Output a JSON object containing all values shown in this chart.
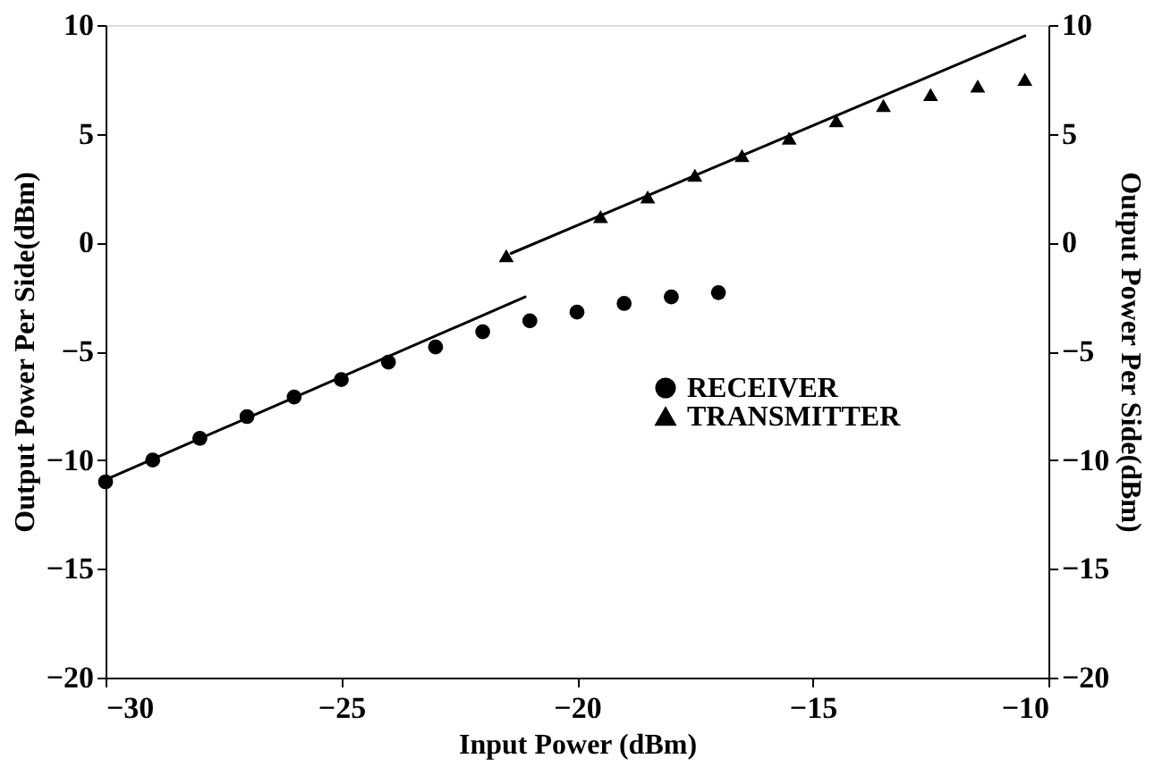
{
  "chart_data": {
    "type": "scatter",
    "xlabel": "Input Power (dBm)",
    "ylabel": "Output Power Per Side(dBm)",
    "y2label": "Output Power Per Side(dBm)",
    "xlim": [
      -30,
      -10
    ],
    "xticks": [
      -30,
      -25,
      -20,
      -15,
      -10
    ],
    "ylim": [
      -20,
      10
    ],
    "yticks": [
      -20,
      -15,
      -10,
      -5,
      0,
      5,
      10
    ],
    "y2lim": [
      -20,
      10
    ],
    "y2ticks": [
      -20,
      -15,
      -10,
      -5,
      0,
      5,
      10
    ],
    "grid": false,
    "legend": "right",
    "series": [
      {
        "name": "RECEIVER",
        "marker": "circle",
        "color": "#000000",
        "x": [
          -30,
          -29,
          -28,
          -27,
          -26,
          -25,
          -24,
          -23,
          -22,
          -21,
          -20,
          -19,
          -18,
          -17
        ],
        "values": [
          -11,
          -10,
          -9,
          -8,
          -7.1,
          -6.3,
          -5.5,
          -4.8,
          -4.1,
          -3.6,
          -3.2,
          -2.8,
          -2.5,
          -2.3
        ]
      },
      {
        "name": "TRANSMITTER",
        "marker": "triangle",
        "color": "#000000",
        "x": [
          -21.5,
          -19.5,
          -18.5,
          -17.5,
          -16.5,
          -15.5,
          -14.5,
          -13.5,
          -12.5,
          -11.5,
          -10.5
        ],
        "values": [
          -0.6,
          1.2,
          2.1,
          3.1,
          4.0,
          4.8,
          5.6,
          6.3,
          6.8,
          7.2,
          7.5
        ]
      },
      {
        "type": "line",
        "color": "#000000",
        "x": [
          -30,
          -21.1
        ],
        "values": [
          -10.9,
          -2.5
        ]
      },
      {
        "type": "line",
        "color": "#000000",
        "x": [
          -21.4,
          -10.5
        ],
        "values": [
          -0.5,
          9.5
        ]
      }
    ]
  }
}
